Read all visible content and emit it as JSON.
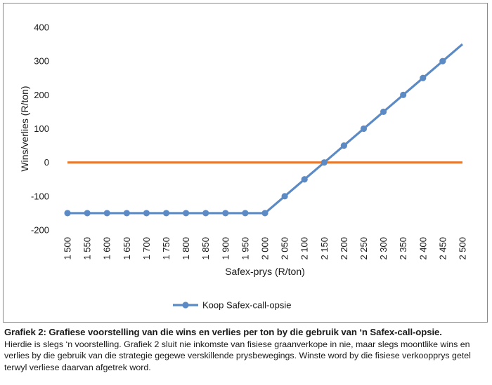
{
  "chart_data": {
    "type": "line",
    "x": [
      1500,
      1550,
      1600,
      1650,
      1700,
      1750,
      1800,
      1850,
      1900,
      1950,
      2000,
      2050,
      2100,
      2150,
      2200,
      2250,
      2300,
      2350,
      2400,
      2450,
      2500
    ],
    "x_tick_labels": [
      "1 500",
      "1 550",
      "1 600",
      "1 650",
      "1 700",
      "1 750",
      "1 800",
      "1 850",
      "1 900",
      "1 950",
      "2 000",
      "2 050",
      "2 100",
      "2 150",
      "2 200",
      "2 250",
      "2 300",
      "2 350",
      "2 400",
      "2 450",
      "2 500"
    ],
    "series": [
      {
        "name": "Koop Safex-call-opsie",
        "color": "#5b8ac4",
        "markers": true,
        "values": [
          -150,
          -150,
          -150,
          -150,
          -150,
          -150,
          -150,
          -150,
          -150,
          -150,
          -150,
          -100,
          -50,
          0,
          50,
          100,
          150,
          200,
          250,
          300,
          350
        ]
      },
      {
        "color": "#e8782d",
        "markers": false,
        "in_legend": false,
        "values": [
          0,
          0,
          0,
          0,
          0,
          0,
          0,
          0,
          0,
          0,
          0,
          0,
          0,
          0,
          0,
          0,
          0,
          0,
          0,
          0,
          0
        ]
      }
    ],
    "xlabel": "Safex-prys (R/ton)",
    "ylabel": "Wins/verlies (R/ton)",
    "ylim": [
      -200,
      400
    ],
    "y_ticks": [
      -200,
      -100,
      0,
      100,
      200,
      300,
      400
    ],
    "grid": false,
    "legend_position": "bottom"
  },
  "caption": {
    "title": "Grafiek 2: Grafiese voorstelling van die wins en verlies per ton by die gebruik van ‘n Safex-call-opsie.",
    "body": "Hierdie is slegs ‘n voorstelling. Grafiek 2 sluit nie inkomste van fisiese graanverkope in nie, maar slegs moontlike wins en verlies by die gebruik van die strategie gegewe verskillende prysbewegings. Winste word by die fisiese verkoopprys getel terwyl verliese daarvan afgetrek word."
  }
}
